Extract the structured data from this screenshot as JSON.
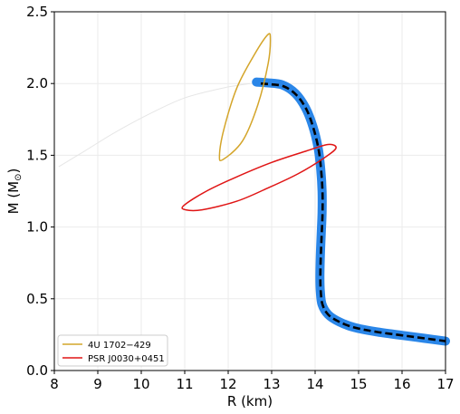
{
  "chart_data": {
    "type": "line",
    "xlabel": "R (km)",
    "ylabel_main": "M (M",
    "ylabel_symbol": "⊙",
    "ylabel_end": ")",
    "xlim": [
      8,
      17
    ],
    "ylim": [
      0,
      2.5
    ],
    "x_ticks": [
      "8",
      "9",
      "10",
      "11",
      "12",
      "13",
      "14",
      "15",
      "16",
      "17"
    ],
    "y_ticks": [
      "0.0",
      "0.5",
      "1.0",
      "1.5",
      "2.0",
      "2.5"
    ],
    "grid": true,
    "legend_position": "lower-left",
    "colors": {
      "band": "#2a86e8",
      "mr_curve": "#000000",
      "faint_curve": "#e6e6e6",
      "ellipse_1": "#d4a52a",
      "ellipse_2": "#e01515",
      "grid": "#ebebeb"
    },
    "series": [
      {
        "name": "4U 1702−429",
        "kind": "contour",
        "color": "#d4a52a",
        "points": [
          [
            12.91,
            2.34
          ],
          [
            12.97,
            2.31
          ],
          [
            12.92,
            2.14
          ],
          [
            12.68,
            1.85
          ],
          [
            12.33,
            1.6
          ],
          [
            11.88,
            1.47
          ],
          [
            11.8,
            1.5
          ],
          [
            11.9,
            1.68
          ],
          [
            12.2,
            1.97
          ],
          [
            12.6,
            2.2
          ]
        ]
      },
      {
        "name": "PSR J0030+0451",
        "kind": "contour",
        "color": "#e01515",
        "points": [
          [
            14.3,
            1.575
          ],
          [
            14.48,
            1.55
          ],
          [
            14.2,
            1.48
          ],
          [
            13.6,
            1.37
          ],
          [
            12.9,
            1.27
          ],
          [
            12.2,
            1.18
          ],
          [
            11.4,
            1.12
          ],
          [
            11.02,
            1.12
          ],
          [
            10.98,
            1.15
          ],
          [
            11.5,
            1.25
          ],
          [
            12.2,
            1.35
          ],
          [
            13.0,
            1.45
          ],
          [
            13.8,
            1.53
          ]
        ]
      },
      {
        "kind": "band",
        "color": "#2a86e8",
        "points": [
          [
            12.65,
            2.01
          ],
          [
            12.9,
            2.005
          ],
          [
            13.25,
            1.99
          ],
          [
            13.55,
            1.93
          ],
          [
            13.78,
            1.83
          ],
          [
            13.95,
            1.7
          ],
          [
            14.07,
            1.55
          ],
          [
            14.13,
            1.4
          ],
          [
            14.16,
            1.25
          ],
          [
            14.16,
            1.1
          ],
          [
            14.14,
            0.95
          ],
          [
            14.12,
            0.8
          ],
          [
            14.11,
            0.65
          ],
          [
            14.12,
            0.55
          ],
          [
            14.16,
            0.46
          ],
          [
            14.3,
            0.39
          ],
          [
            14.55,
            0.34
          ],
          [
            14.9,
            0.3
          ],
          [
            15.4,
            0.27
          ],
          [
            16.0,
            0.245
          ],
          [
            16.5,
            0.225
          ],
          [
            17.0,
            0.205
          ]
        ]
      },
      {
        "kind": "mass-radius",
        "color": "#000000",
        "points": [
          [
            12.75,
            2.0
          ],
          [
            12.95,
            1.995
          ],
          [
            13.28,
            1.98
          ],
          [
            13.57,
            1.92
          ],
          [
            13.8,
            1.82
          ],
          [
            13.96,
            1.69
          ],
          [
            14.08,
            1.54
          ],
          [
            14.14,
            1.39
          ],
          [
            14.17,
            1.24
          ],
          [
            14.17,
            1.09
          ],
          [
            14.15,
            0.94
          ],
          [
            14.13,
            0.79
          ],
          [
            14.12,
            0.65
          ],
          [
            14.13,
            0.55
          ],
          [
            14.17,
            0.46
          ],
          [
            14.3,
            0.39
          ],
          [
            14.55,
            0.34
          ],
          [
            14.9,
            0.3
          ],
          [
            15.4,
            0.27
          ],
          [
            16.0,
            0.245
          ],
          [
            16.5,
            0.225
          ],
          [
            17.0,
            0.205
          ]
        ]
      },
      {
        "kind": "faint",
        "color": "#e6e6e6",
        "points": [
          [
            8.1,
            1.42
          ],
          [
            8.7,
            1.53
          ],
          [
            9.4,
            1.66
          ],
          [
            10.2,
            1.79
          ],
          [
            11.0,
            1.9
          ],
          [
            11.9,
            1.97
          ],
          [
            12.5,
            2.0
          ]
        ]
      }
    ],
    "legend": [
      {
        "label": "4U 1702−429",
        "color": "#d4a52a"
      },
      {
        "label": "PSR J0030+0451",
        "color": "#e01515"
      }
    ]
  }
}
